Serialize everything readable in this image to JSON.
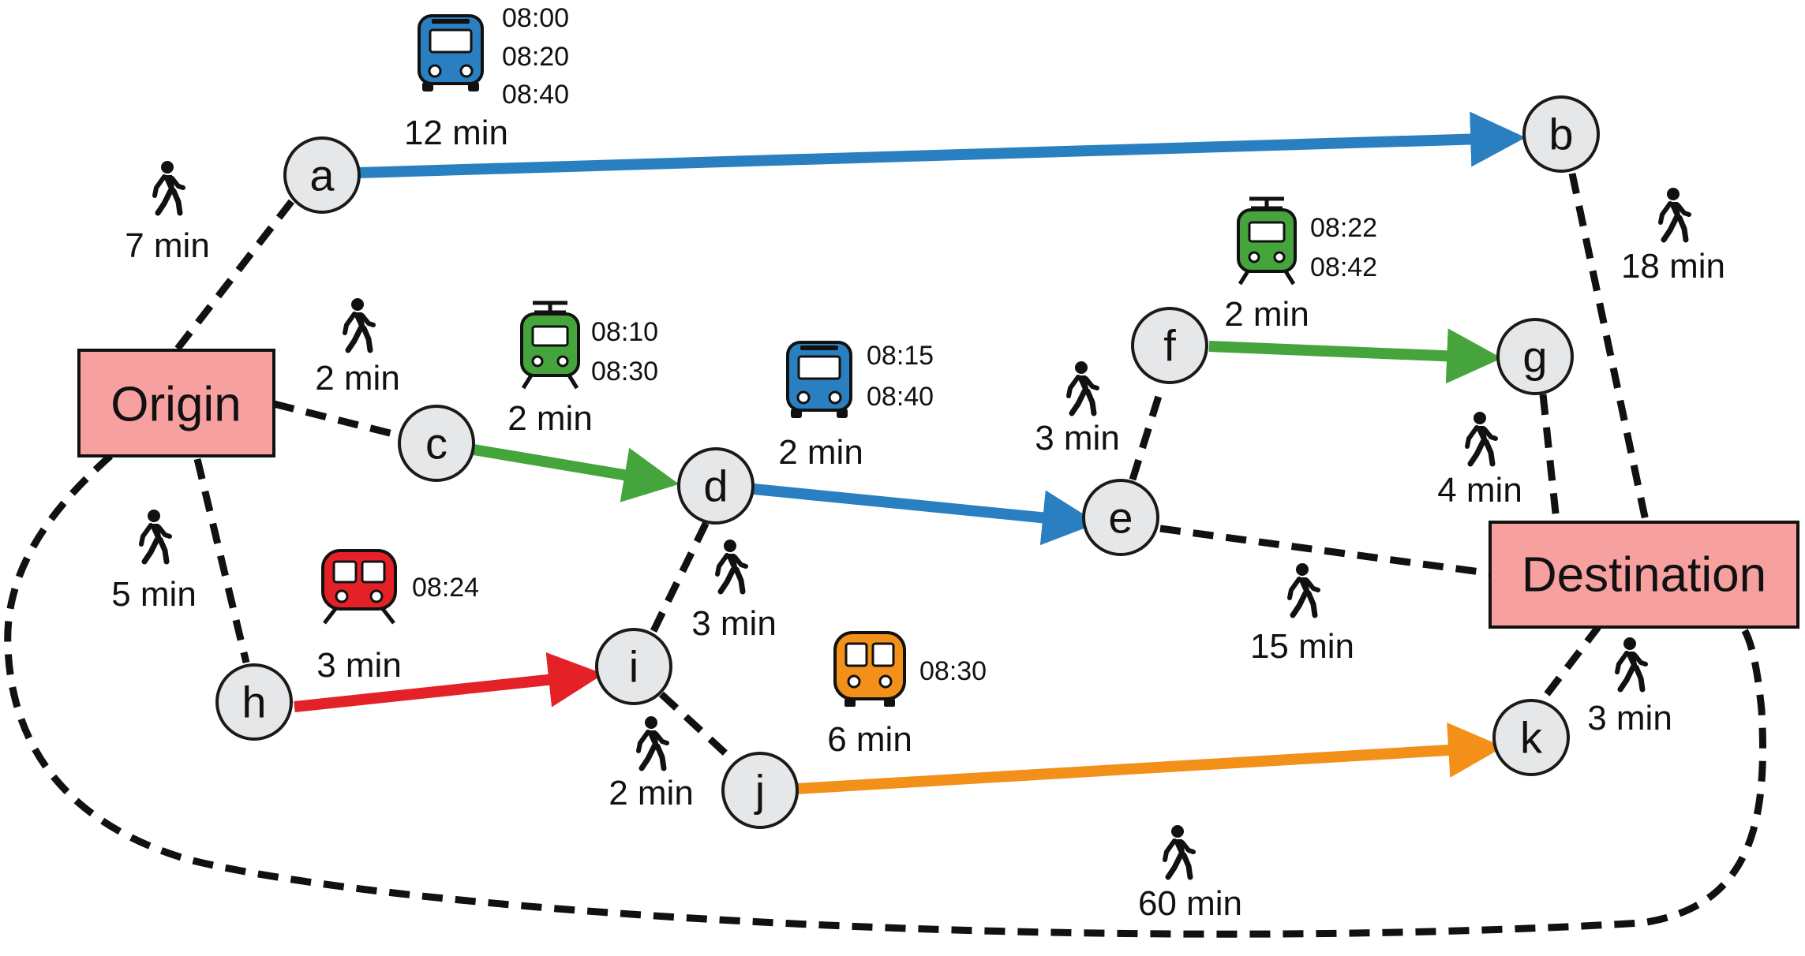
{
  "colors": {
    "bus": "#2a7fc0",
    "tram": "#45a43b",
    "metro": "#e42126",
    "train": "#f39019",
    "box_fill": "#f7a0a0",
    "node_fill": "#e6e7e9"
  },
  "boxes": {
    "origin": "Origin",
    "destination": "Destination"
  },
  "nodes": {
    "a": "a",
    "b": "b",
    "c": "c",
    "d": "d",
    "e": "e",
    "f": "f",
    "g": "g",
    "h": "h",
    "i": "i",
    "j": "j",
    "k": "k"
  },
  "walks": {
    "origin_a": "7 min",
    "origin_c": "2 min",
    "origin_h": "5 min",
    "origin_destination": "60 min",
    "b_destination": "18 min",
    "g_destination": "4 min",
    "e_destination": "15 min",
    "k_destination": "3 min",
    "e_f": "3 min",
    "d_i": "3 min",
    "i_j": "2 min"
  },
  "lines": {
    "a_b": {
      "mode": "bus-icon",
      "duration": "12 min",
      "times": [
        "08:00",
        "08:20",
        "08:40"
      ]
    },
    "c_d": {
      "mode": "tram-icon",
      "duration": "2 min",
      "times": [
        "08:10",
        "08:30"
      ]
    },
    "d_e": {
      "mode": "bus-icon",
      "duration": "2 min",
      "times": [
        "08:15",
        "08:40"
      ]
    },
    "f_g": {
      "mode": "tram-icon",
      "duration": "2 min",
      "times": [
        "08:22",
        "08:42"
      ]
    },
    "h_i": {
      "mode": "metro-icon",
      "duration": "3 min",
      "times": [
        "08:24"
      ]
    },
    "j_k": {
      "mode": "train-icon",
      "duration": "6 min",
      "times": [
        "08:30"
      ]
    }
  }
}
